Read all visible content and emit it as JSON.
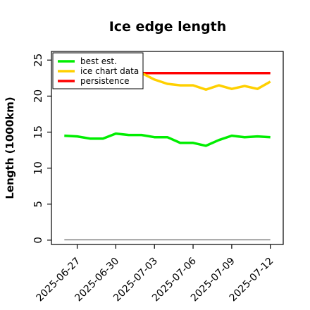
{
  "chart_data": {
    "type": "line",
    "title": "Ice edge length",
    "xlabel": "",
    "ylabel": "Length (1000km)",
    "x_dates": [
      "2025-06-26",
      "2025-06-27",
      "2025-06-28",
      "2025-06-29",
      "2025-06-30",
      "2025-07-01",
      "2025-07-02",
      "2025-07-03",
      "2025-07-04",
      "2025-07-05",
      "2025-07-06",
      "2025-07-07",
      "2025-07-08",
      "2025-07-09",
      "2025-07-10",
      "2025-07-11",
      "2025-07-12"
    ],
    "xticks": [
      "2025-06-27",
      "2025-06-30",
      "2025-07-03",
      "2025-07-06",
      "2025-07-09",
      "2025-07-12"
    ],
    "xlim": [
      "2025-06-25",
      "2025-07-13"
    ],
    "yticks": [
      0,
      5,
      10,
      15,
      20,
      25
    ],
    "ylim": [
      -0.6,
      26.2
    ],
    "grid": false,
    "legend_position": "top-left",
    "series": [
      {
        "name": "best est.",
        "color": "#00ee00",
        "values": [
          14.5,
          14.4,
          14.1,
          14.1,
          14.8,
          14.6,
          14.6,
          14.3,
          14.3,
          13.5,
          13.5,
          13.1,
          13.9,
          14.5,
          14.3,
          14.4,
          14.3
        ]
      },
      {
        "name": "ice chart data",
        "color": "#ffd000",
        "values": [
          null,
          null,
          null,
          null,
          null,
          null,
          23.2,
          22.3,
          21.7,
          21.5,
          21.5,
          20.9,
          21.5,
          21.0,
          21.4,
          21.0,
          22.0
        ]
      },
      {
        "name": "persistence",
        "color": "#ff0000",
        "values": [
          null,
          null,
          null,
          null,
          null,
          null,
          23.2,
          23.2,
          23.2,
          23.2,
          23.2,
          23.2,
          23.2,
          23.2,
          23.2,
          23.2,
          23.2
        ]
      },
      {
        "color": "#808080",
        "values": [
          0.05,
          0.05,
          0.05,
          0.05,
          0.05,
          0.05,
          0.05,
          0.05,
          0.05,
          0.05,
          0.05,
          0.05,
          0.05,
          0.05,
          0.05,
          0.05,
          0.05
        ]
      }
    ]
  }
}
